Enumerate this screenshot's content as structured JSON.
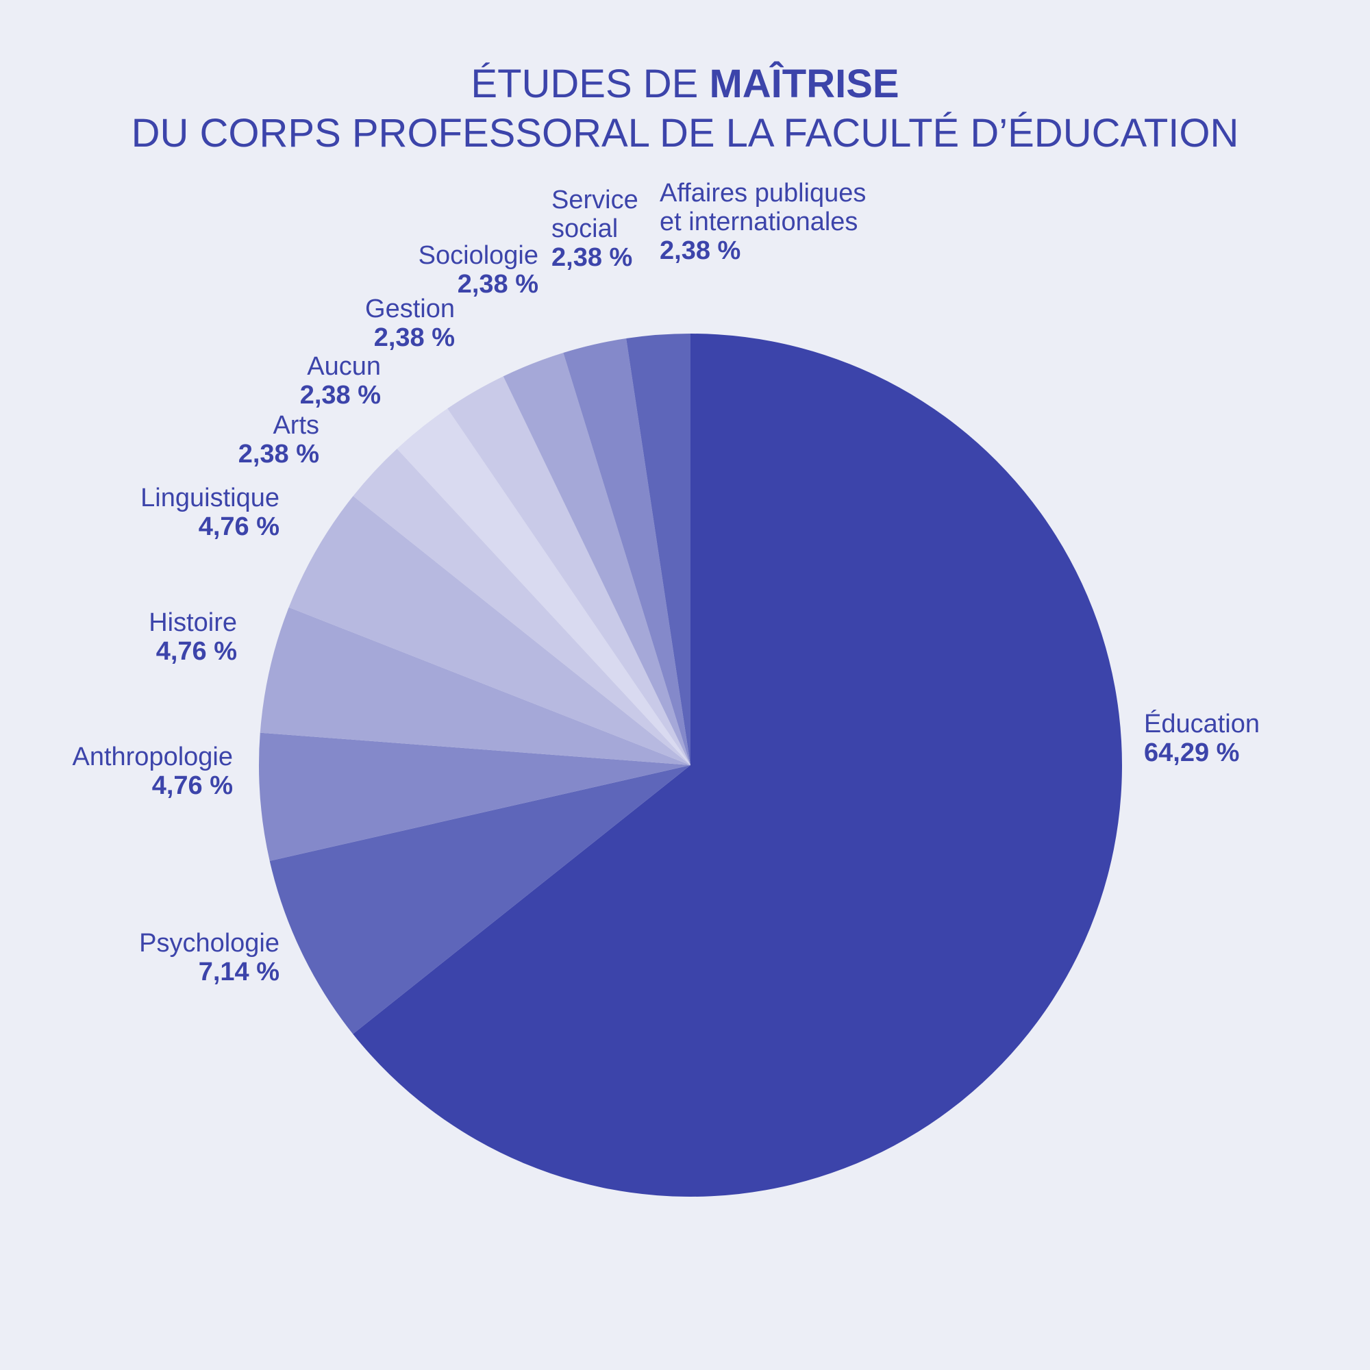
{
  "title": {
    "line1_prefix": "ÉTUDES DE ",
    "line1_bold": "MAÎTRISE",
    "line2": "DU CORPS PROFESSORAL DE LA FACULTÉ D’ÉDUCATION"
  },
  "chart_data": {
    "type": "pie",
    "title": "ÉTUDES DE MAÎTRISE DU CORPS PROFESSORAL DE LA FACULTÉ D’ÉDUCATION",
    "start_angle_deg": 0,
    "direction": "clockwise",
    "slices": [
      {
        "label_lines": [
          "Éducation"
        ],
        "value": 64.29,
        "value_label": "64,29 %",
        "color": "#3c44aa"
      },
      {
        "label_lines": [
          "Psychologie"
        ],
        "value": 7.14,
        "value_label": "7,14 %",
        "color": "#5e66ba"
      },
      {
        "label_lines": [
          "Anthropologie"
        ],
        "value": 4.76,
        "value_label": "4,76 %",
        "color": "#8489ca"
      },
      {
        "label_lines": [
          "Histoire"
        ],
        "value": 4.76,
        "value_label": "4,76 %",
        "color": "#a5a8d8"
      },
      {
        "label_lines": [
          "Linguistique"
        ],
        "value": 4.76,
        "value_label": "4,76 %",
        "color": "#b7b9e0"
      },
      {
        "label_lines": [
          "Arts"
        ],
        "value": 2.38,
        "value_label": "2,38 %",
        "color": "#c9cae8"
      },
      {
        "label_lines": [
          "Aucun"
        ],
        "value": 2.38,
        "value_label": "2,38 %",
        "color": "#d9daf0"
      },
      {
        "label_lines": [
          "Gestion"
        ],
        "value": 2.38,
        "value_label": "2,38 %",
        "color": "#c9cae8"
      },
      {
        "label_lines": [
          "Sociologie"
        ],
        "value": 2.38,
        "value_label": "2,38 %",
        "color": "#a5a8d8"
      },
      {
        "label_lines": [
          "Service",
          "social"
        ],
        "value": 2.38,
        "value_label": "2,38 %",
        "color": "#8489ca"
      },
      {
        "label_lines": [
          "Affaires publiques",
          "et internationales"
        ],
        "value": 2.38,
        "value_label": "2,38 %",
        "color": "#5e66ba"
      }
    ]
  }
}
